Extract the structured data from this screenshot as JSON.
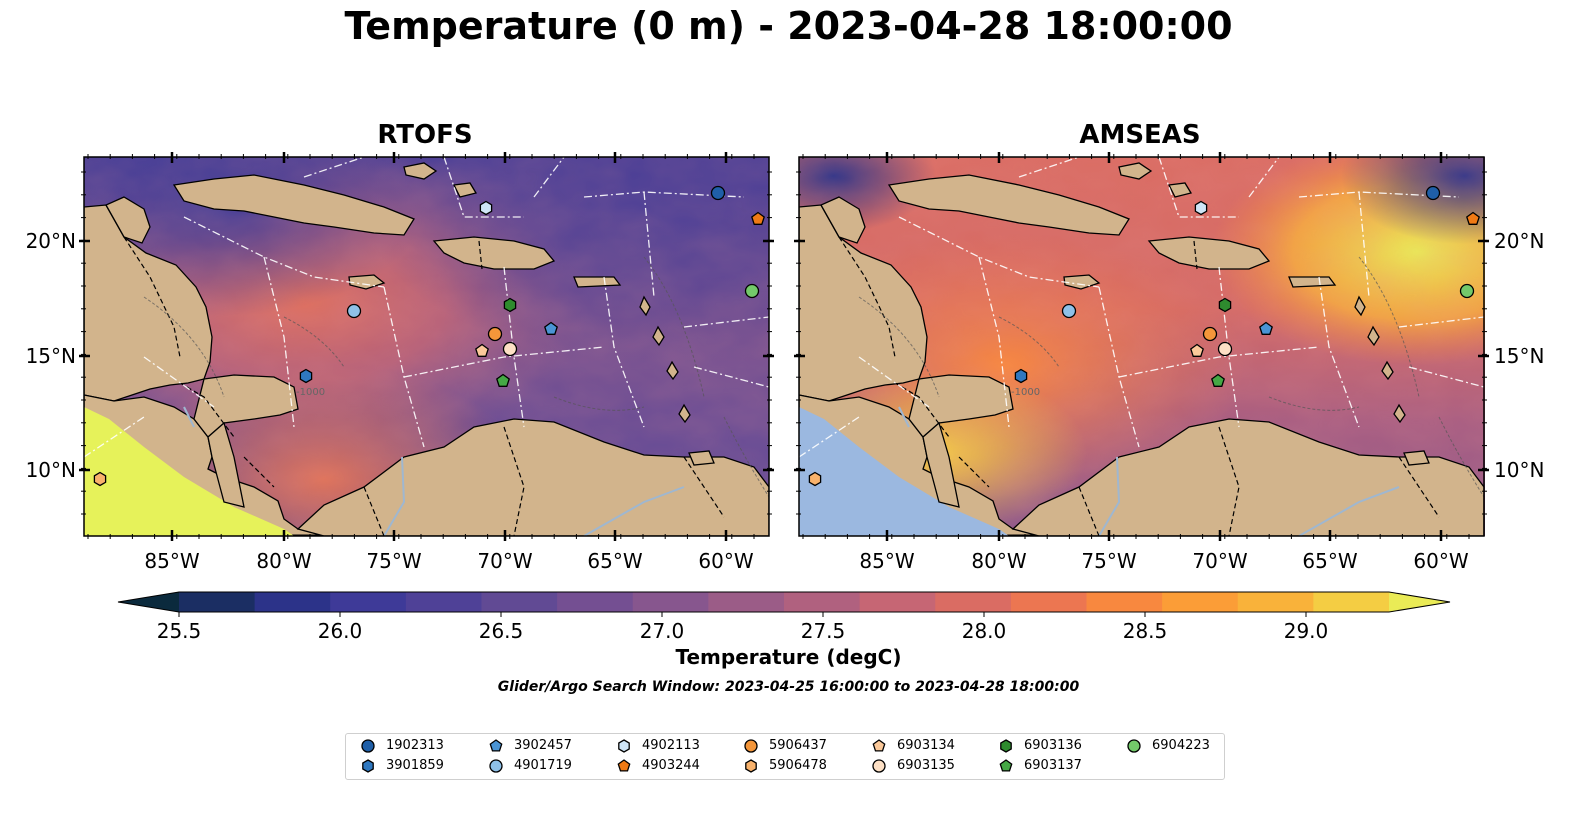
{
  "title": "Temperature (0 m) - 2023-04-28 18:00:00",
  "panels": [
    {
      "title": "RTOFS"
    },
    {
      "title": "AMSEAS"
    }
  ],
  "map": {
    "lon_ticks": [
      "85°W",
      "80°W",
      "75°W",
      "70°W",
      "65°W",
      "60°W"
    ],
    "lat_ticks_left": [
      "20°N",
      "15°N",
      "10°N"
    ],
    "lat_ticks_right": [
      "20°N",
      "15°N",
      "10°N"
    ],
    "land_color": "#d2b48c",
    "outside_ocean_color_rtofs": "#e6f25a",
    "outside_ocean_color_amseas": "#9bb8e0",
    "bathymetry_label": "-1000"
  },
  "colorbar": {
    "ticks": [
      "25.5",
      "26.0",
      "26.5",
      "27.0",
      "27.5",
      "28.0",
      "28.5",
      "29.0"
    ],
    "title": "Temperature (degC)",
    "colors": [
      "#0b2a3d",
      "#1b2e63",
      "#2c3389",
      "#3e3a98",
      "#4f4197",
      "#614a94",
      "#744f92",
      "#87568e",
      "#9b5c87",
      "#b0617f",
      "#c66674",
      "#da6c63",
      "#ec7651",
      "#f8883f",
      "#fb9d37",
      "#f9b23a",
      "#f4cd43",
      "#eaeb56"
    ]
  },
  "search_window": "Glider/Argo Search Window: 2023-04-25 16:00:00 to 2023-04-28 18:00:00",
  "legend": [
    {
      "label": "1902313",
      "marker": "circle",
      "color": "#1f5fa8"
    },
    {
      "label": "3901859",
      "marker": "hexagon",
      "color": "#2f78c0"
    },
    {
      "label": "3902457",
      "marker": "pentagon",
      "color": "#4a94d4"
    },
    {
      "label": "4901719",
      "marker": "circle",
      "color": "#8fc1e8"
    },
    {
      "label": "4902113",
      "marker": "hexagon",
      "color": "#cfe5f6"
    },
    {
      "label": "4903244",
      "marker": "pentagon",
      "color": "#f07a14"
    },
    {
      "label": "5906437",
      "marker": "circle",
      "color": "#f4963a"
    },
    {
      "label": "5906478",
      "marker": "hexagon",
      "color": "#f8b26c"
    },
    {
      "label": "6903134",
      "marker": "pentagon",
      "color": "#fbc99a"
    },
    {
      "label": "6903135",
      "marker": "circle",
      "color": "#fde0c5"
    },
    {
      "label": "6903136",
      "marker": "hexagon",
      "color": "#2e8b2e"
    },
    {
      "label": "6903137",
      "marker": "pentagon",
      "color": "#45a845"
    },
    {
      "label": "6904223",
      "marker": "circle",
      "color": "#73c96a"
    }
  ]
}
